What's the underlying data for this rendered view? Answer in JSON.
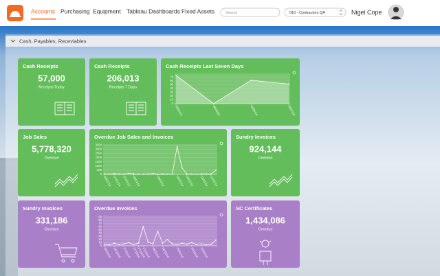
{
  "nav": {
    "items": [
      "Accounts",
      "Purchasing",
      "Equipment",
      "Tableau Dashboards",
      "Fixed Assets"
    ]
  },
  "search_placeholder": "Search",
  "company": "010 - Contractors QA",
  "user": "Nigel Cope",
  "panel": {
    "title": "Cash, Payables, Receviables"
  },
  "tiles": [
    {
      "title": "Cash Receipts",
      "value": "57,000",
      "caption": "Receipts Today",
      "color": "#64bd5b"
    },
    {
      "title": "Cash Receipts",
      "value": "206,013",
      "caption": "Receipts 7 Days",
      "color": "#64bd5b"
    },
    {
      "title": "Cash Receipts Last Seven Days",
      "color": "#64bd5b",
      "chart": {
        "type": "area",
        "categories": [
          "08/01/14",
          "08/03/14",
          "08/06/14",
          "08/07/14"
        ],
        "values": [
          75,
          0,
          62,
          52
        ],
        "ylim": [
          0,
          80
        ],
        "yticks": [
          0,
          10,
          20,
          30,
          40,
          50,
          60,
          70
        ]
      }
    },
    {
      "title": "Job Sales",
      "value": "5,778,320",
      "caption": "Overdue",
      "color": "#64bd5b"
    },
    {
      "title": "Overdue Job Sales and Invoices",
      "color": "#64bd5b",
      "chart": {
        "type": "line",
        "categories": [
          "06/01/14",
          null,
          "07/01/14",
          null,
          "07/15/14",
          null,
          "08/01/14",
          null,
          null,
          null,
          null,
          "08/15/14",
          null,
          null,
          null,
          "09/01/14",
          null,
          "09/15/14",
          null,
          null,
          "10/01/14",
          null,
          "10/15/14",
          null
        ],
        "values": [
          60,
          40,
          80,
          50,
          30,
          120,
          60,
          40,
          30,
          50,
          90,
          40,
          60,
          30,
          50,
          3300,
          800,
          60,
          40,
          30,
          50,
          60,
          40,
          500
        ],
        "ylim": [
          0,
          3600
        ],
        "yticks": [
          0,
          500,
          1000,
          1500,
          2000,
          2500,
          3000,
          3500
        ]
      }
    },
    {
      "title": "Sundry Invoices",
      "value": "924,144",
      "caption": "Overdue",
      "color": "#64bd5b"
    },
    {
      "title": "Sundry Invoices",
      "value": "331,186",
      "caption": "Overdue",
      "color": "#a97fc7"
    },
    {
      "title": "Overdue Invoices",
      "color": "#a97fc7",
      "chart": {
        "type": "line",
        "categories": [
          "06/01/14",
          null,
          "06/15/14",
          null,
          "07/01/14",
          null,
          "07/15/14",
          "07/20/14",
          "07/25/14",
          null,
          "08/01/14",
          null,
          "08/15/14",
          null,
          null,
          "09/01/14",
          null,
          null,
          "09/15/14",
          null,
          "10/01/14",
          null,
          null,
          null
        ],
        "values": [
          5,
          3,
          8,
          4,
          6,
          10,
          4,
          8,
          60,
          12,
          6,
          45,
          8,
          20,
          6,
          4,
          8,
          5,
          10,
          4,
          6,
          3,
          5,
          18
        ],
        "ylim": [
          0,
          95
        ],
        "yticks": [
          0,
          10,
          20,
          30,
          40,
          50,
          60,
          70,
          80,
          90
        ]
      }
    },
    {
      "title": "SC Certificates",
      "value": "1,434,086",
      "caption": "Overdue",
      "color": "#a97fc7"
    }
  ]
}
